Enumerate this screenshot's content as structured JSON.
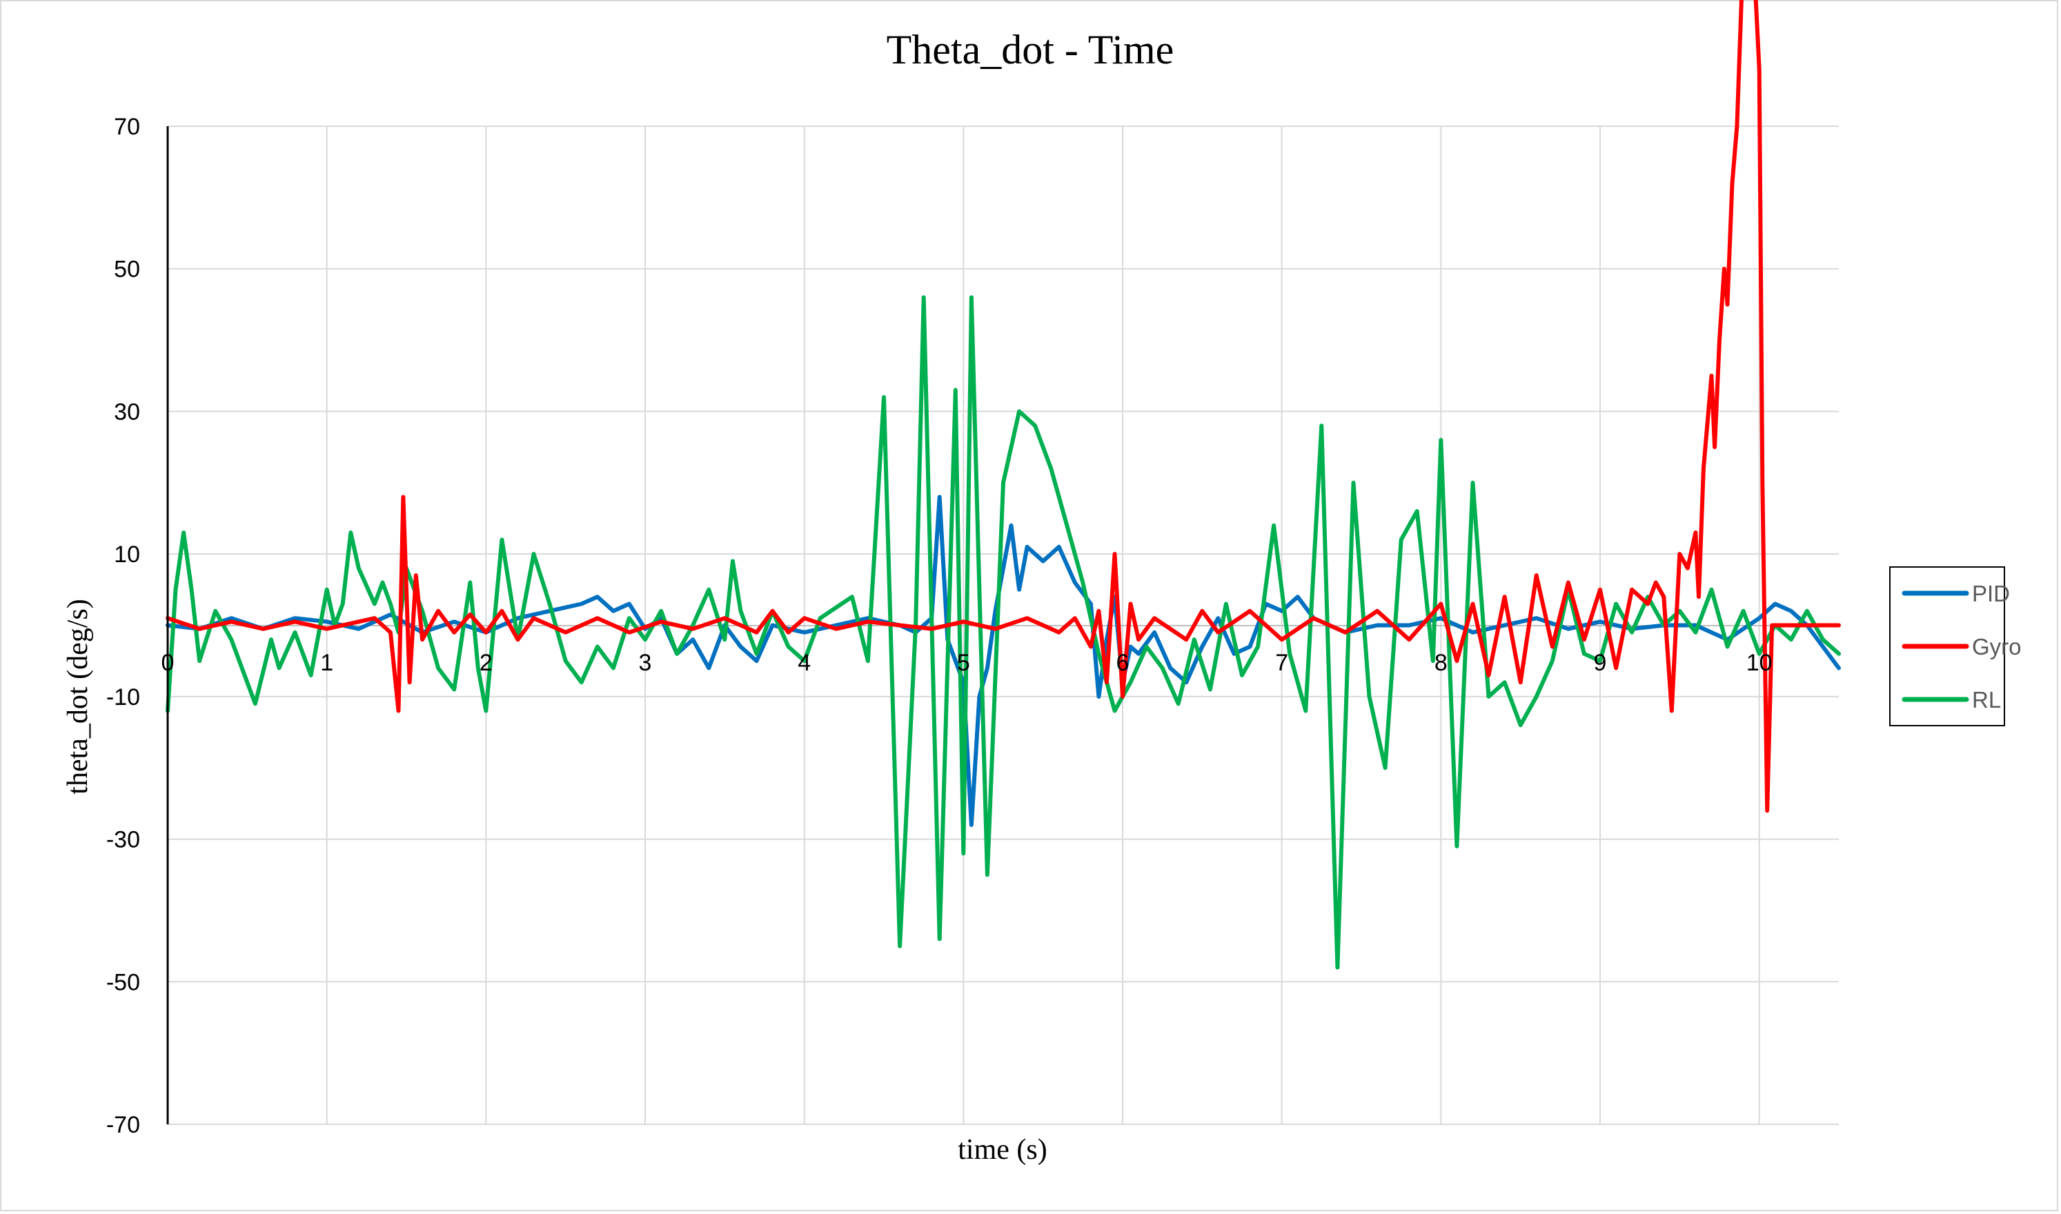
{
  "chart_data": {
    "type": "line",
    "title": "Theta_dot - Time",
    "xlabel": "time (s)",
    "ylabel": "theta_dot  (deg/s)",
    "xlim": [
      0,
      10.5
    ],
    "ylim": [
      -70,
      70
    ],
    "xticks": [
      "0",
      "1",
      "2",
      "3",
      "4",
      "5",
      "6",
      "7",
      "8",
      "9",
      "10"
    ],
    "yticks": [
      "70",
      "50",
      "30",
      "10",
      "-10",
      "-30",
      "-50",
      "-70"
    ],
    "grid": true,
    "legend_position": "right",
    "series": [
      {
        "name": "PID",
        "color": "#0070c0",
        "points": [
          [
            0,
            0
          ],
          [
            0.2,
            -0.5
          ],
          [
            0.4,
            1
          ],
          [
            0.6,
            -0.5
          ],
          [
            0.8,
            1
          ],
          [
            1.0,
            0.5
          ],
          [
            1.2,
            -0.5
          ],
          [
            1.4,
            1.5
          ],
          [
            1.6,
            -1
          ],
          [
            1.8,
            0.5
          ],
          [
            2.0,
            -1
          ],
          [
            2.2,
            1
          ],
          [
            2.4,
            2
          ],
          [
            2.6,
            3
          ],
          [
            2.7,
            4
          ],
          [
            2.8,
            2
          ],
          [
            2.9,
            3
          ],
          [
            3.0,
            -0.5
          ],
          [
            3.1,
            1
          ],
          [
            3.2,
            -4
          ],
          [
            3.3,
            -2
          ],
          [
            3.4,
            -6
          ],
          [
            3.5,
            0
          ],
          [
            3.6,
            -3
          ],
          [
            3.7,
            -5
          ],
          [
            3.8,
            0
          ],
          [
            4.0,
            -1
          ],
          [
            4.2,
            0
          ],
          [
            4.4,
            1
          ],
          [
            4.6,
            0
          ],
          [
            4.7,
            -1
          ],
          [
            4.8,
            1
          ],
          [
            4.85,
            18
          ],
          [
            4.9,
            -2
          ],
          [
            4.95,
            -5
          ],
          [
            5.0,
            -8
          ],
          [
            5.05,
            -28
          ],
          [
            5.1,
            -10
          ],
          [
            5.15,
            -6
          ],
          [
            5.2,
            2
          ],
          [
            5.3,
            14
          ],
          [
            5.35,
            5
          ],
          [
            5.4,
            11
          ],
          [
            5.5,
            9
          ],
          [
            5.6,
            11
          ],
          [
            5.7,
            6
          ],
          [
            5.8,
            3
          ],
          [
            5.85,
            -10
          ],
          [
            5.9,
            -2
          ],
          [
            5.95,
            4
          ],
          [
            6.0,
            -8
          ],
          [
            6.05,
            -3
          ],
          [
            6.1,
            -4
          ],
          [
            6.2,
            -1
          ],
          [
            6.3,
            -6
          ],
          [
            6.4,
            -8
          ],
          [
            6.5,
            -3
          ],
          [
            6.6,
            1
          ],
          [
            6.7,
            -4
          ],
          [
            6.8,
            -3
          ],
          [
            6.9,
            3
          ],
          [
            7.0,
            2
          ],
          [
            7.1,
            4
          ],
          [
            7.2,
            1
          ],
          [
            7.4,
            -1
          ],
          [
            7.6,
            0
          ],
          [
            7.8,
            0
          ],
          [
            8.0,
            1
          ],
          [
            8.2,
            -1
          ],
          [
            8.4,
            0
          ],
          [
            8.6,
            1
          ],
          [
            8.8,
            -0.5
          ],
          [
            9.0,
            0.5
          ],
          [
            9.2,
            -0.5
          ],
          [
            9.4,
            0
          ],
          [
            9.6,
            0
          ],
          [
            9.8,
            -2
          ],
          [
            10.0,
            1
          ],
          [
            10.1,
            3
          ],
          [
            10.2,
            2
          ],
          [
            10.3,
            0
          ],
          [
            10.4,
            -3
          ],
          [
            10.5,
            -6
          ]
        ]
      },
      {
        "name": "Gyro",
        "color": "#ff0000",
        "points": [
          [
            0,
            1
          ],
          [
            0.2,
            -0.5
          ],
          [
            0.4,
            0.5
          ],
          [
            0.6,
            -0.5
          ],
          [
            0.8,
            0.5
          ],
          [
            1.0,
            -0.5
          ],
          [
            1.2,
            0.5
          ],
          [
            1.3,
            1
          ],
          [
            1.4,
            -1
          ],
          [
            1.45,
            -12
          ],
          [
            1.48,
            18
          ],
          [
            1.52,
            -8
          ],
          [
            1.56,
            7
          ],
          [
            1.6,
            -2
          ],
          [
            1.7,
            2
          ],
          [
            1.8,
            -1
          ],
          [
            1.9,
            1.5
          ],
          [
            2.0,
            -1
          ],
          [
            2.1,
            2
          ],
          [
            2.2,
            -2
          ],
          [
            2.3,
            1
          ],
          [
            2.5,
            -1
          ],
          [
            2.7,
            1
          ],
          [
            2.9,
            -1
          ],
          [
            3.1,
            0.5
          ],
          [
            3.3,
            -0.5
          ],
          [
            3.5,
            1
          ],
          [
            3.7,
            -1
          ],
          [
            3.8,
            2
          ],
          [
            3.9,
            -1
          ],
          [
            4.0,
            1
          ],
          [
            4.2,
            -0.5
          ],
          [
            4.4,
            0.5
          ],
          [
            4.6,
            0
          ],
          [
            4.8,
            -0.5
          ],
          [
            5.0,
            0.5
          ],
          [
            5.2,
            -0.5
          ],
          [
            5.4,
            1
          ],
          [
            5.6,
            -1
          ],
          [
            5.7,
            1
          ],
          [
            5.8,
            -3
          ],
          [
            5.85,
            2
          ],
          [
            5.9,
            -8
          ],
          [
            5.95,
            10
          ],
          [
            6.0,
            -10
          ],
          [
            6.05,
            3
          ],
          [
            6.1,
            -2
          ],
          [
            6.2,
            1
          ],
          [
            6.4,
            -2
          ],
          [
            6.5,
            2
          ],
          [
            6.6,
            -1
          ],
          [
            6.8,
            2
          ],
          [
            7.0,
            -2
          ],
          [
            7.2,
            1
          ],
          [
            7.4,
            -1
          ],
          [
            7.6,
            2
          ],
          [
            7.8,
            -2
          ],
          [
            8.0,
            3
          ],
          [
            8.1,
            -5
          ],
          [
            8.2,
            3
          ],
          [
            8.3,
            -7
          ],
          [
            8.4,
            4
          ],
          [
            8.5,
            -8
          ],
          [
            8.6,
            7
          ],
          [
            8.7,
            -3
          ],
          [
            8.8,
            6
          ],
          [
            8.9,
            -2
          ],
          [
            9.0,
            5
          ],
          [
            9.1,
            -6
          ],
          [
            9.2,
            5
          ],
          [
            9.3,
            3
          ],
          [
            9.35,
            6
          ],
          [
            9.4,
            4
          ],
          [
            9.45,
            -12
          ],
          [
            9.5,
            10
          ],
          [
            9.55,
            8
          ],
          [
            9.6,
            13
          ],
          [
            9.62,
            4
          ],
          [
            9.65,
            22
          ],
          [
            9.7,
            35
          ],
          [
            9.72,
            25
          ],
          [
            9.75,
            40
          ],
          [
            9.78,
            50
          ],
          [
            9.8,
            45
          ],
          [
            9.83,
            62
          ],
          [
            9.86,
            70
          ],
          [
            9.9,
            95
          ],
          [
            9.96,
            96
          ],
          [
            10.0,
            78
          ],
          [
            10.02,
            20
          ],
          [
            10.05,
            -26
          ],
          [
            10.08,
            0
          ],
          [
            10.2,
            0
          ],
          [
            10.5,
            0
          ]
        ]
      },
      {
        "name": "RL",
        "color": "#00b050",
        "points": [
          [
            0,
            -12
          ],
          [
            0.05,
            5
          ],
          [
            0.1,
            13
          ],
          [
            0.15,
            5
          ],
          [
            0.2,
            -5
          ],
          [
            0.3,
            2
          ],
          [
            0.4,
            -2
          ],
          [
            0.5,
            -8
          ],
          [
            0.55,
            -11
          ],
          [
            0.65,
            -2
          ],
          [
            0.7,
            -6
          ],
          [
            0.8,
            -1
          ],
          [
            0.9,
            -7
          ],
          [
            1.0,
            5
          ],
          [
            1.05,
            0
          ],
          [
            1.1,
            3
          ],
          [
            1.15,
            13
          ],
          [
            1.2,
            8
          ],
          [
            1.3,
            3
          ],
          [
            1.35,
            6
          ],
          [
            1.4,
            3
          ],
          [
            1.45,
            -1
          ],
          [
            1.5,
            8
          ],
          [
            1.6,
            2
          ],
          [
            1.7,
            -6
          ],
          [
            1.8,
            -9
          ],
          [
            1.9,
            6
          ],
          [
            1.95,
            -6
          ],
          [
            2.0,
            -12
          ],
          [
            2.1,
            12
          ],
          [
            2.2,
            -2
          ],
          [
            2.3,
            10
          ],
          [
            2.4,
            3
          ],
          [
            2.5,
            -5
          ],
          [
            2.6,
            -8
          ],
          [
            2.7,
            -3
          ],
          [
            2.8,
            -6
          ],
          [
            2.9,
            1
          ],
          [
            3.0,
            -2
          ],
          [
            3.1,
            2
          ],
          [
            3.2,
            -4
          ],
          [
            3.3,
            0
          ],
          [
            3.4,
            5
          ],
          [
            3.5,
            -2
          ],
          [
            3.55,
            9
          ],
          [
            3.6,
            2
          ],
          [
            3.7,
            -4
          ],
          [
            3.8,
            2
          ],
          [
            3.9,
            -3
          ],
          [
            4.0,
            -5
          ],
          [
            4.1,
            1
          ],
          [
            4.3,
            4
          ],
          [
            4.4,
            -5
          ],
          [
            4.5,
            32
          ],
          [
            4.6,
            -45
          ],
          [
            4.7,
            0
          ],
          [
            4.75,
            46
          ],
          [
            4.85,
            -44
          ],
          [
            4.95,
            33
          ],
          [
            5.0,
            -32
          ],
          [
            5.05,
            46
          ],
          [
            5.1,
            5
          ],
          [
            5.15,
            -35
          ],
          [
            5.25,
            20
          ],
          [
            5.35,
            30
          ],
          [
            5.45,
            28
          ],
          [
            5.55,
            22
          ],
          [
            5.65,
            14
          ],
          [
            5.75,
            6
          ],
          [
            5.85,
            -4
          ],
          [
            5.95,
            -12
          ],
          [
            6.05,
            -8
          ],
          [
            6.15,
            -3
          ],
          [
            6.25,
            -6
          ],
          [
            6.35,
            -11
          ],
          [
            6.45,
            -2
          ],
          [
            6.55,
            -9
          ],
          [
            6.65,
            3
          ],
          [
            6.75,
            -7
          ],
          [
            6.85,
            -3
          ],
          [
            6.95,
            14
          ],
          [
            7.05,
            -4
          ],
          [
            7.15,
            -12
          ],
          [
            7.25,
            28
          ],
          [
            7.35,
            -48
          ],
          [
            7.45,
            20
          ],
          [
            7.55,
            -10
          ],
          [
            7.65,
            -20
          ],
          [
            7.75,
            12
          ],
          [
            7.85,
            16
          ],
          [
            7.95,
            -5
          ],
          [
            8.0,
            26
          ],
          [
            8.1,
            -31
          ],
          [
            8.2,
            20
          ],
          [
            8.3,
            -10
          ],
          [
            8.4,
            -8
          ],
          [
            8.5,
            -14
          ],
          [
            8.6,
            -10
          ],
          [
            8.7,
            -5
          ],
          [
            8.8,
            5
          ],
          [
            8.9,
            -4
          ],
          [
            9.0,
            -5
          ],
          [
            9.1,
            3
          ],
          [
            9.2,
            -1
          ],
          [
            9.3,
            4
          ],
          [
            9.4,
            0
          ],
          [
            9.5,
            2
          ],
          [
            9.6,
            -1
          ],
          [
            9.7,
            5
          ],
          [
            9.8,
            -3
          ],
          [
            9.9,
            2
          ],
          [
            10.0,
            -4
          ],
          [
            10.1,
            0
          ],
          [
            10.2,
            -2
          ],
          [
            10.3,
            2
          ],
          [
            10.4,
            -2
          ],
          [
            10.5,
            -4
          ]
        ]
      }
    ]
  }
}
